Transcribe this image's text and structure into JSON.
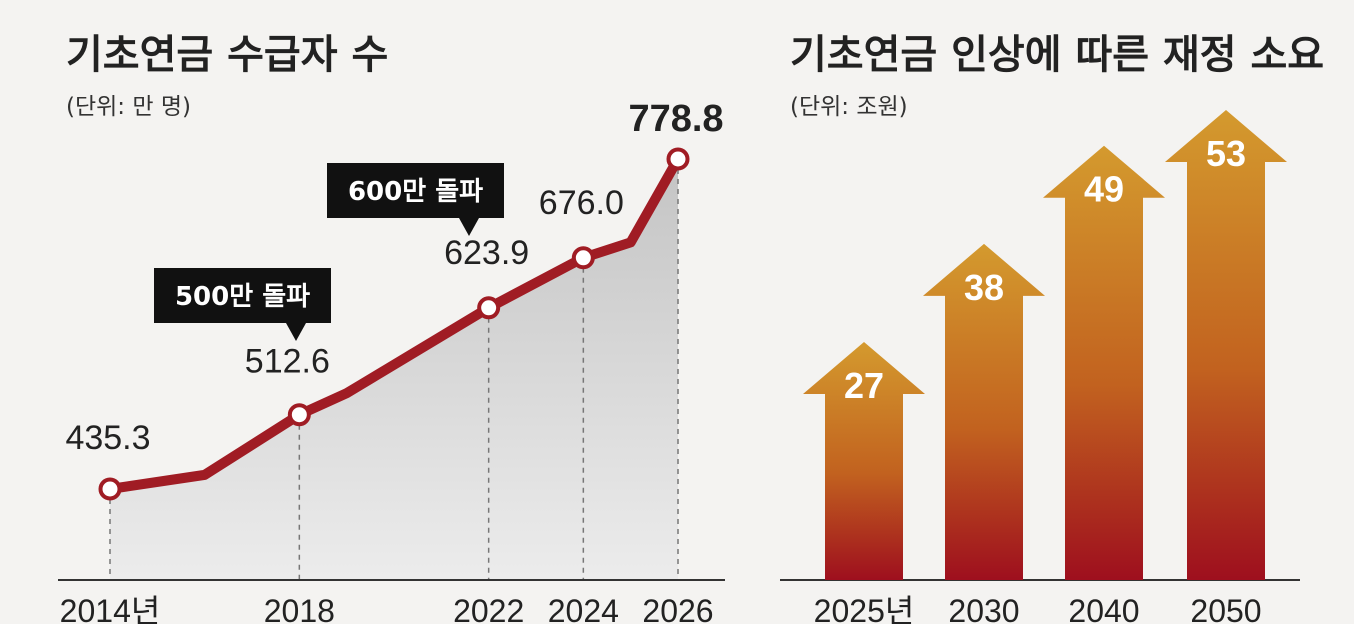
{
  "chart_data": [
    {
      "type": "line",
      "title": "기초연금 수급자 수",
      "subtitle": "(단위: 만 명)",
      "x": [
        2014,
        2016,
        2018,
        2019,
        2022,
        2024,
        2025,
        2026
      ],
      "values": [
        435.3,
        450,
        512.6,
        535,
        623.9,
        676.0,
        692,
        778.8
      ],
      "labeled_points": [
        {
          "x": 2014,
          "label": "435.3"
        },
        {
          "x": 2018,
          "label": "512.6"
        },
        {
          "x": 2022,
          "label": "623.9"
        },
        {
          "x": 2024,
          "label": "676.0"
        },
        {
          "x": 2026,
          "label": "778.8"
        }
      ],
      "xticks": [
        {
          "x": 2014,
          "label": "2014년"
        },
        {
          "x": 2018,
          "label": "2018"
        },
        {
          "x": 2022,
          "label": "2022"
        },
        {
          "x": 2024,
          "label": "2024"
        },
        {
          "x": 2026,
          "label": "2026"
        }
      ],
      "callouts": [
        {
          "text": "500만 돌파",
          "x": 2018
        },
        {
          "text": "600만 돌파",
          "x": 2022
        }
      ],
      "xlim": [
        2014,
        2026
      ],
      "ylim": [
        400,
        800
      ],
      "grid": false,
      "colors": {
        "line": "#a01c24",
        "fill": "#cfcfcf",
        "callout": "#111111"
      }
    },
    {
      "type": "bar",
      "title": "기초연금 인상에 따른 재정 소요",
      "subtitle": "(단위: 조원)",
      "categories": [
        "2025년",
        "2030",
        "2040",
        "2050"
      ],
      "values": [
        27,
        38,
        49,
        53
      ],
      "ylim": [
        0,
        60
      ],
      "grid": false,
      "colors": {
        "top": "#d2952c",
        "bottom": "#9e0f1e"
      }
    }
  ]
}
